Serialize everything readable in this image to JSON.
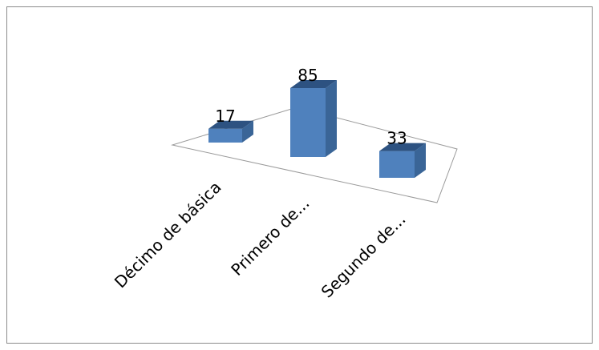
{
  "chart_data": {
    "type": "bar",
    "style": "3d-column",
    "title": "",
    "xlabel": "",
    "ylabel": "",
    "categories": [
      "Décimo de básica",
      "Primero de...",
      "Segundo de..."
    ],
    "values": [
      17,
      85,
      33
    ],
    "data_labels": [
      "17",
      "85",
      "33"
    ],
    "ylim": [
      0,
      85
    ],
    "grid": false,
    "legend": "none",
    "colors": {
      "bar_front": "#4F81BD",
      "bar_side": "#3A6597",
      "bar_top": "#2D5281",
      "floor_stroke": "#9A9A9A",
      "frame_stroke": "#8C8C8C"
    }
  }
}
